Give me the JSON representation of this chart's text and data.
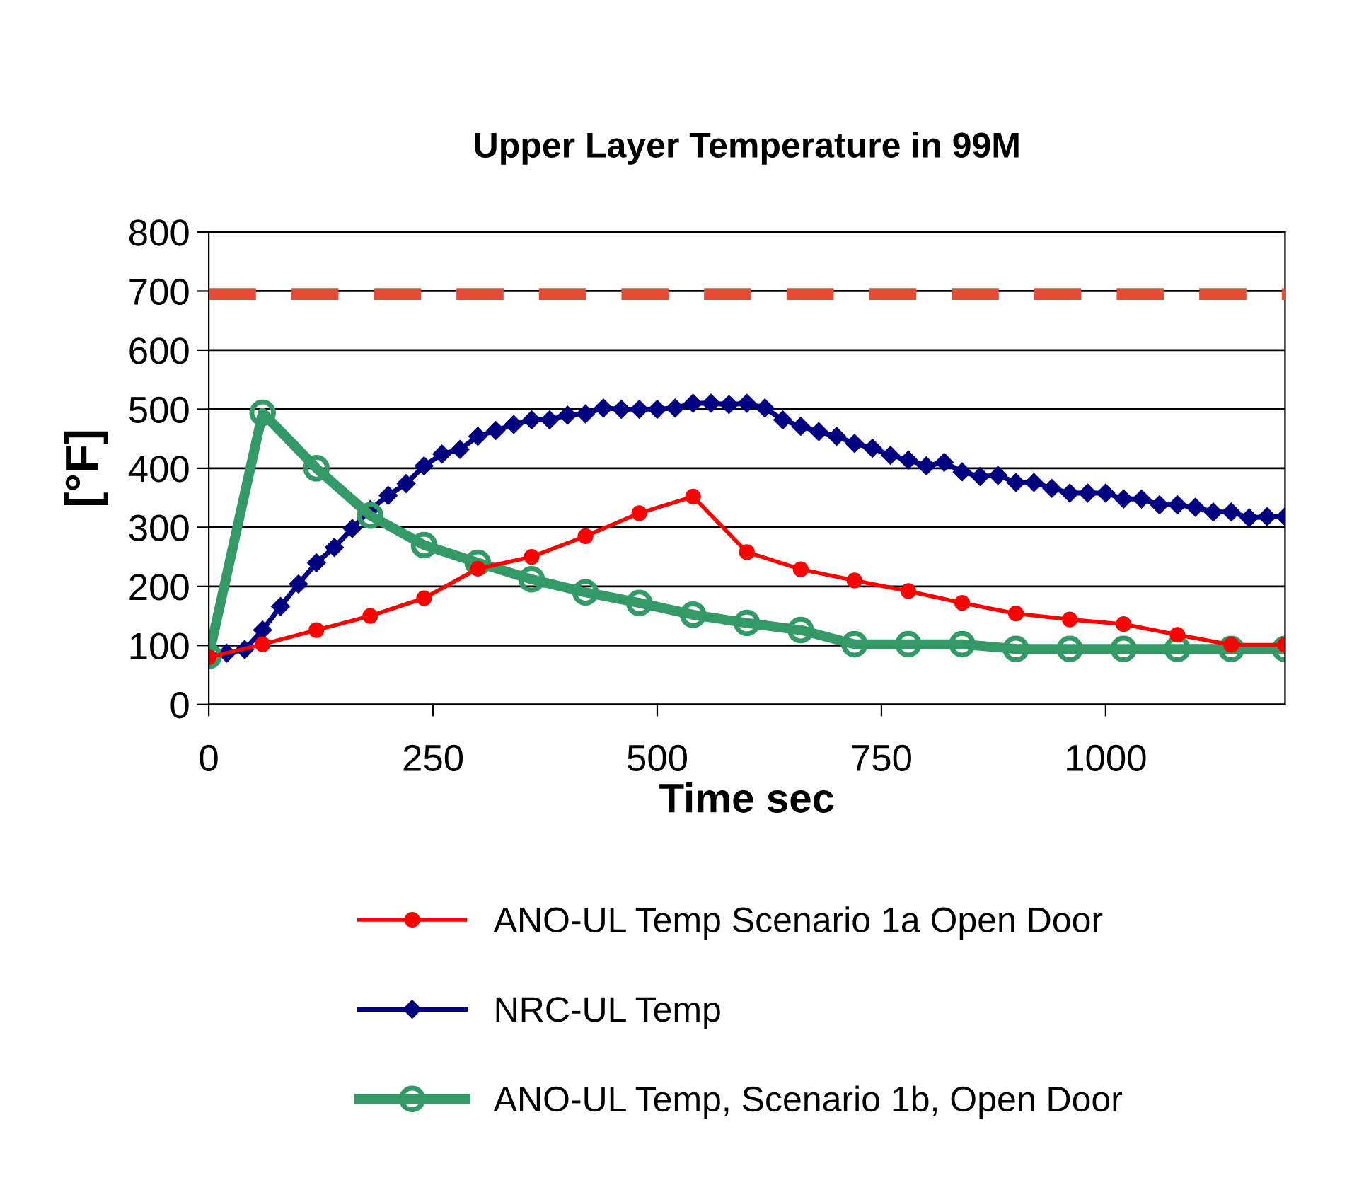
{
  "chart_data": {
    "type": "line",
    "title": "Upper Layer Temperature in 99M",
    "xlabel": "Time sec",
    "ylabel": "[°F]",
    "xlim": [
      0,
      1200
    ],
    "xticks": [
      0,
      250,
      500,
      750,
      1000
    ],
    "ylim": [
      0,
      800
    ],
    "yticks": [
      0,
      100,
      200,
      300,
      400,
      500,
      600,
      700,
      800
    ],
    "grid": "y",
    "legend": "bottom",
    "ref_lines": [
      {
        "axis": "y",
        "value": 695,
        "color": "#e34c37",
        "line_style": "dashed"
      }
    ],
    "series": [
      {
        "name": "ANO-UL Temp Scenario 1a Open Door",
        "color": "#ff0000",
        "marker": "circle",
        "x": [
          0,
          60,
          120,
          180,
          240,
          300,
          360,
          420,
          480,
          540,
          600,
          660,
          720,
          780,
          840,
          900,
          960,
          1020,
          1080,
          1140,
          1200
        ],
        "values": [
          80,
          102,
          126,
          150,
          180,
          230,
          250,
          285,
          324,
          352,
          258,
          229,
          210,
          192,
          172,
          154,
          144,
          136,
          118,
          101,
          101
        ]
      },
      {
        "name": "NRC-UL Temp",
        "color": "#000080",
        "marker": "diamond",
        "x": [
          0,
          20,
          40,
          60,
          80,
          100,
          120,
          140,
          160,
          180,
          200,
          220,
          240,
          260,
          280,
          300,
          320,
          340,
          360,
          380,
          400,
          420,
          440,
          460,
          480,
          500,
          520,
          540,
          560,
          580,
          600,
          620,
          640,
          660,
          680,
          700,
          720,
          740,
          760,
          780,
          800,
          820,
          840,
          860,
          880,
          900,
          920,
          940,
          960,
          980,
          1000,
          1020,
          1040,
          1060,
          1080,
          1100,
          1120,
          1140,
          1160,
          1180,
          1200
        ],
        "values": [
          82,
          87,
          93,
          126,
          166,
          204,
          240,
          266,
          298,
          330,
          354,
          374,
          404,
          424,
          432,
          454,
          464,
          474,
          482,
          482,
          490,
          492,
          502,
          500,
          500,
          500,
          502,
          510,
          510,
          508,
          510,
          502,
          482,
          471,
          462,
          454,
          442,
          434,
          422,
          414,
          404,
          410,
          394,
          386,
          388,
          376,
          376,
          366,
          358,
          358,
          358,
          348,
          348,
          338,
          338,
          334,
          326,
          326,
          316,
          318,
          318
        ]
      },
      {
        "name": "ANO-UL Temp, Scenario 1b, Open Door",
        "color": "#339966",
        "marker": "circle",
        "x": [
          0,
          60,
          120,
          180,
          240,
          300,
          360,
          420,
          480,
          540,
          600,
          660,
          720,
          780,
          840,
          900,
          960,
          1020,
          1080,
          1140,
          1200
        ],
        "values": [
          82,
          494,
          400,
          320,
          270,
          240,
          212,
          190,
          172,
          152,
          138,
          126,
          102,
          102,
          102,
          94,
          94,
          94,
          94,
          94,
          94
        ]
      }
    ]
  }
}
